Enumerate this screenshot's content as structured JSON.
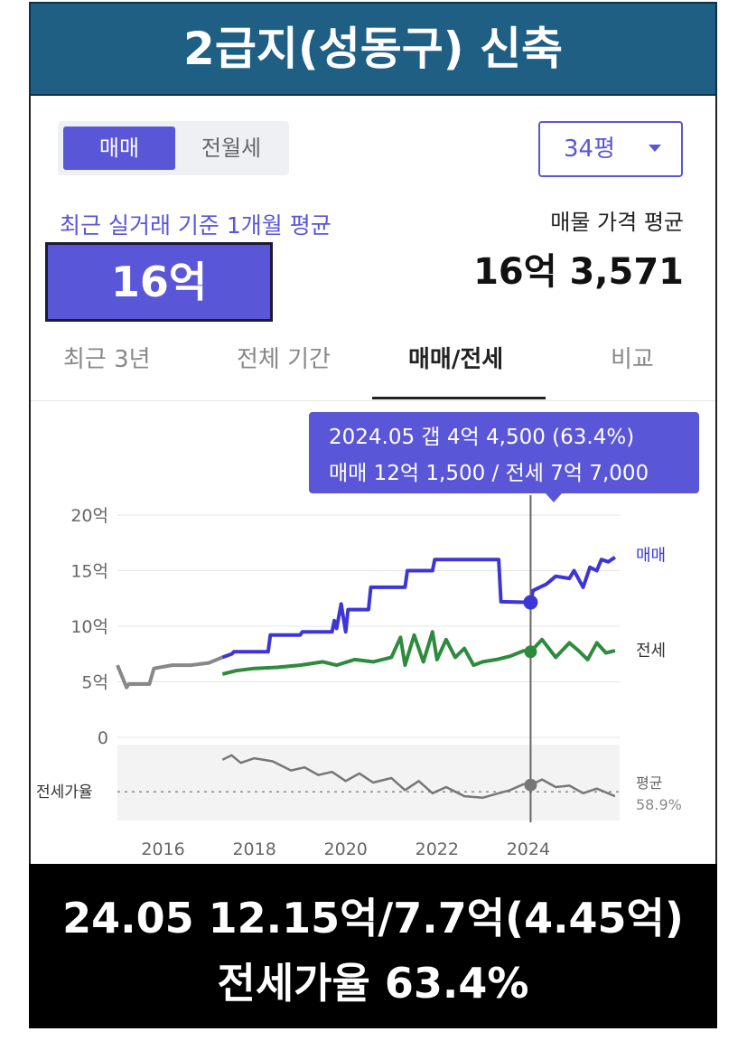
{
  "header": {
    "title": "2급지(성동구) 신축"
  },
  "toggle": {
    "active": "매매",
    "other": "전월세"
  },
  "dropdown": {
    "label": "34평"
  },
  "summary": {
    "recent_label": "최근 실거래 기준 1개월 평균",
    "recent_value": "16억",
    "listing_label": "매물 가격 평균",
    "listing_value": "16억 3,571"
  },
  "tabs": [
    "최근 3년",
    "전체 기간",
    "매매/전세",
    "비교"
  ],
  "tooltip": {
    "line1": "2024.05  갭 4억 4,500 (63.4%)",
    "line2": "매매 12억 1,500 / 전세 7억 7,000"
  },
  "colors": {
    "sale": "#3d35d6",
    "jeonse": "#2e8b3e",
    "ratio": "#777777",
    "accent": "#5a56d8",
    "header_bg": "#1e5f83"
  },
  "chart_data": {
    "type": "line",
    "x_unit": "year",
    "xlim": [
      2015.0,
      2026.0
    ],
    "ylim": [
      0,
      20
    ],
    "y_unit": "억",
    "y_ticks": [
      "20억",
      "15억",
      "10억",
      "5억",
      "0"
    ],
    "y_tick_values": [
      20,
      15,
      10,
      5,
      0
    ],
    "x_ticks": [
      "2016",
      "2018",
      "2020",
      "2022",
      "2024"
    ],
    "x_tick_values": [
      2016,
      2018,
      2020,
      2022,
      2024
    ],
    "series": [
      {
        "name": "매매",
        "color": "#3d35d6",
        "x": [
          2015.0,
          2015.2,
          2015.25,
          2015.7,
          2015.8,
          2016.2,
          2016.6,
          2017.0,
          2017.3,
          2017.5,
          2017.55,
          2018.3,
          2018.35,
          2019.0,
          2019.05,
          2019.7,
          2019.75,
          2019.8,
          2019.9,
          2020.0,
          2020.05,
          2020.5,
          2020.55,
          2021.3,
          2021.35,
          2021.9,
          2021.95,
          2023.35,
          2023.4,
          2024.05,
          2024.1,
          2024.4,
          2024.6,
          2024.9,
          2025.0,
          2025.2,
          2025.35,
          2025.5,
          2025.6,
          2025.75,
          2025.9
        ],
        "y": [
          6.5,
          4.5,
          4.8,
          4.8,
          6.2,
          6.5,
          6.5,
          6.7,
          7.2,
          7.5,
          7.7,
          7.7,
          9.2,
          9.2,
          9.5,
          9.5,
          10.5,
          9.8,
          12.0,
          9.5,
          11.5,
          11.5,
          13.5,
          13.5,
          15.0,
          15.0,
          16.0,
          16.0,
          12.2,
          12.15,
          13.2,
          13.8,
          14.5,
          14.3,
          15.0,
          13.5,
          15.3,
          15.0,
          16.0,
          15.8,
          16.2
        ]
      },
      {
        "name": "전세",
        "color": "#2e8b3e",
        "x": [
          2017.3,
          2017.6,
          2018.0,
          2018.5,
          2019.0,
          2019.5,
          2019.8,
          2020.2,
          2020.6,
          2021.0,
          2021.2,
          2021.3,
          2021.5,
          2021.7,
          2021.9,
          2022.0,
          2022.2,
          2022.4,
          2022.6,
          2022.8,
          2023.0,
          2023.3,
          2023.6,
          2023.9,
          2024.05,
          2024.3,
          2024.6,
          2024.9,
          2025.1,
          2025.3,
          2025.5,
          2025.7,
          2025.9
        ],
        "y": [
          5.7,
          6.0,
          6.2,
          6.3,
          6.5,
          6.8,
          6.5,
          7.0,
          6.8,
          7.2,
          9.0,
          6.5,
          9.2,
          6.8,
          9.5,
          7.0,
          8.8,
          7.2,
          8.0,
          6.5,
          6.8,
          7.0,
          7.3,
          7.8,
          7.7,
          8.8,
          7.2,
          8.5,
          7.8,
          7.0,
          8.5,
          7.6,
          7.8
        ]
      },
      {
        "name": "전세가율",
        "color": "#777777",
        "x": [
          2017.3,
          2017.5,
          2017.7,
          2018.0,
          2018.4,
          2018.8,
          2019.1,
          2019.4,
          2019.7,
          2020.0,
          2020.3,
          2020.6,
          2021.0,
          2021.3,
          2021.6,
          2021.9,
          2022.2,
          2022.6,
          2023.0,
          2023.35,
          2023.6,
          2023.9,
          2024.05,
          2024.3,
          2024.6,
          2024.9,
          2025.2,
          2025.5,
          2025.9
        ],
        "y": [
          80,
          83,
          78,
          81,
          79,
          73,
          75,
          70,
          72,
          66,
          71,
          65,
          68,
          60,
          66,
          58,
          62,
          56,
          55,
          58,
          60,
          64,
          63.4,
          67,
          62,
          63,
          58,
          61,
          56
        ]
      }
    ],
    "ratio_panel": {
      "label": "전세가율",
      "average_label": "평균",
      "average_value": "58.9%",
      "average": 58.9,
      "ylim": [
        40,
        90
      ]
    },
    "end_labels": {
      "sale": "매매",
      "jeonse": "전세"
    },
    "highlight": {
      "x": 2024.05,
      "sale": 12.15,
      "jeonse": 7.7,
      "ratio": 63.4
    }
  },
  "bottom": {
    "line1": "24.05  12.15억/7.7억(4.45억)",
    "line2": "전세가율 63.4%"
  }
}
